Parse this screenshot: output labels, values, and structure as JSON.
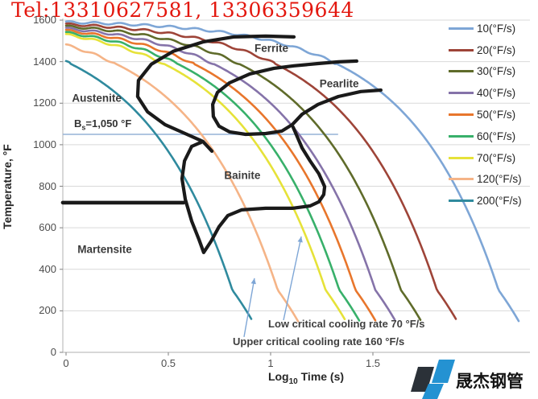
{
  "overlay": {
    "tel_text": "Tel:13310627581, 13306359644",
    "tel_color": "#e3170e"
  },
  "logo": {
    "text": "晟杰钢管",
    "dark_color": "#2b3138",
    "blue_color": "#2492d2"
  },
  "chart_data": {
    "type": "line",
    "title": "",
    "xlabel": "Log10 Time (s)",
    "xlabel_parts": {
      "main": "Log",
      "sub": "10",
      "rest": " Time (s)"
    },
    "ylabel": "Temperature, °F",
    "xlim": [
      0,
      2.27
    ],
    "ylim": [
      0,
      1600
    ],
    "xticks": [
      0,
      0.5,
      1,
      1.5
    ],
    "yticks": [
      0,
      200,
      400,
      600,
      800,
      1000,
      1200,
      1400,
      1600
    ],
    "grid": "horizontal-only",
    "legend_position": "right-inside",
    "model": {
      "start_temp_F": 1600,
      "rule": "T(t) = 1600 - rate*t, plotted vs log10(t), tails flatten below 300°F"
    },
    "series": [
      {
        "name": "10(°F/s)",
        "rate": 10,
        "color": "#7EA6D6"
      },
      {
        "name": "20(°F/s)",
        "rate": 20,
        "color": "#9E4438"
      },
      {
        "name": "30(°F/s)",
        "rate": 30,
        "color": "#5F6B2A"
      },
      {
        "name": "40(°F/s)",
        "rate": 40,
        "color": "#8573A9"
      },
      {
        "name": "50(°F/s)",
        "rate": 50,
        "color": "#E8762C"
      },
      {
        "name": "60(°F/s)",
        "rate": 60,
        "color": "#38B06A"
      },
      {
        "name": "70(°F/s)",
        "rate": 70,
        "color": "#E6E239"
      },
      {
        "name": "120(°F/s)",
        "rate": 120,
        "color": "#F5B487"
      },
      {
        "name": "200(°F/s)",
        "rate": 200,
        "color": "#2F8A9E"
      }
    ],
    "bs_line": {
      "label_b": "B",
      "label_sub": "s",
      "label_rest": "=1,050 °F",
      "label_full": "Bs=1,050 °F",
      "temp_F": 1050,
      "x_start": -0.016,
      "x_end": 1.33,
      "color": "#95b3d7"
    },
    "ms_line": {
      "temp_F": 721,
      "x_start": -0.016,
      "x_end": 0.575,
      "color": "#1a1a1a"
    },
    "boundaries": {
      "ferrite_start": [
        [
          1.114,
          1519
        ],
        [
          0.976,
          1523
        ],
        [
          0.819,
          1519
        ],
        [
          0.673,
          1496
        ],
        [
          0.524,
          1450
        ],
        [
          0.417,
          1388
        ],
        [
          0.354,
          1310
        ],
        [
          0.35,
          1232
        ],
        [
          0.398,
          1159
        ],
        [
          0.484,
          1097
        ],
        [
          0.591,
          1050
        ],
        [
          0.669,
          1016
        ],
        [
          0.713,
          969
        ]
      ],
      "pearlite": [
        [
          1.421,
          1403
        ],
        [
          1.331,
          1399
        ],
        [
          1.232,
          1391
        ],
        [
          1.114,
          1380
        ],
        [
          1.016,
          1368
        ],
        [
          0.898,
          1341
        ],
        [
          0.799,
          1298
        ],
        [
          0.74,
          1252
        ],
        [
          0.717,
          1194
        ],
        [
          0.72,
          1136
        ],
        [
          0.748,
          1089
        ],
        [
          0.799,
          1062
        ],
        [
          0.878,
          1050
        ],
        [
          0.976,
          1054
        ],
        [
          1.055,
          1066
        ],
        [
          1.106,
          1097
        ],
        [
          1.154,
          1147
        ],
        [
          1.232,
          1194
        ],
        [
          1.331,
          1232
        ],
        [
          1.441,
          1256
        ],
        [
          1.539,
          1263
        ]
      ],
      "bainite": [
        [
          0.661,
          1012
        ],
        [
          0.614,
          992
        ],
        [
          0.579,
          922
        ],
        [
          0.567,
          837
        ],
        [
          0.583,
          736
        ],
        [
          0.614,
          632
        ],
        [
          0.65,
          543
        ],
        [
          0.673,
          481
        ],
        [
          0.709,
          535
        ],
        [
          0.748,
          605
        ],
        [
          0.791,
          659
        ],
        [
          0.858,
          686
        ],
        [
          0.976,
          694
        ],
        [
          1.106,
          694
        ],
        [
          1.193,
          705
        ],
        [
          1.236,
          725
        ],
        [
          1.26,
          760
        ],
        [
          1.264,
          798
        ],
        [
          1.236,
          860
        ],
        [
          1.193,
          922
        ],
        [
          1.154,
          984
        ],
        [
          1.13,
          1039
        ],
        [
          1.11,
          1085
        ]
      ]
    },
    "region_labels": [
      {
        "text": "Austenite",
        "x": 0.15,
        "T": 1225
      },
      {
        "text": "Ferrite",
        "x": 1.004,
        "T": 1465
      },
      {
        "text": "Pearlite",
        "x": 1.335,
        "T": 1294
      },
      {
        "text": "Bainite",
        "x": 0.862,
        "T": 853
      },
      {
        "text": "Martensite",
        "x": 0.189,
        "T": 496
      }
    ],
    "annotations": [
      {
        "text": "Low critical cooling rate 70 °F/s",
        "tail": [
          1.063,
          155
        ],
        "tip": [
          1.15,
          558
        ]
      },
      {
        "text": "Upper critical cooling rate 160 °F/s",
        "tail": [
          0.87,
          74
        ],
        "tip": [
          0.921,
          357
        ]
      }
    ]
  }
}
